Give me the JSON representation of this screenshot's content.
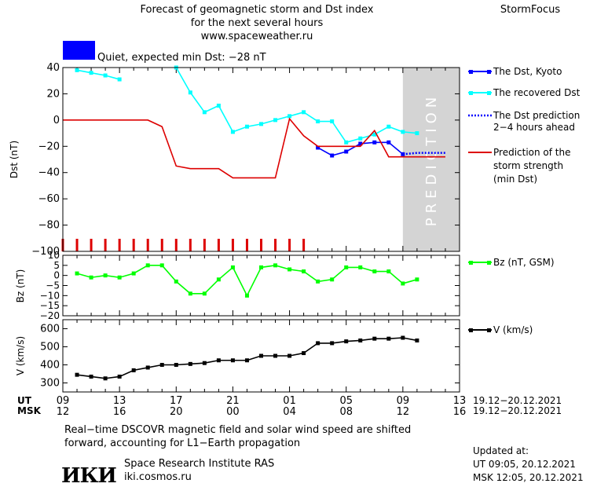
{
  "header": {
    "title_line1": "Forecast of geomagnetic storm and Dst index",
    "title_line2": "for the next several hours",
    "site": "www.spaceweather.ru",
    "brand": "StormFocus"
  },
  "status": {
    "text": "Quiet, expected min Dst: −28 nT",
    "color": "#0000ff"
  },
  "prediction_zone_label": "PREDICTION",
  "legend": {
    "dst_kyoto": "The Dst, Kyoto",
    "dst_recovered": "The recovered Dst",
    "dst_pred_line1": "The Dst prediction",
    "dst_pred_line2": "2−4 hours ahead",
    "storm_line1": "Prediction of the",
    "storm_line2": "storm strength",
    "storm_line3": "(min Dst)",
    "bz": "Bz (nT, GSM)",
    "v": "V (km/s)"
  },
  "time_axis": {
    "ut_label": "UT",
    "msk_label": "MSK",
    "ut_ticks": [
      "09",
      "13",
      "17",
      "21",
      "01",
      "05",
      "09",
      "13"
    ],
    "msk_ticks": [
      "12",
      "16",
      "20",
      "00",
      "04",
      "08",
      "12",
      "16"
    ],
    "ut_range": "19.12−20.12.2021",
    "msk_range": "19.12−20.12.2021"
  },
  "footer": {
    "note_line1": "Real−time DSCOVR magnetic field and solar wind speed are shifted",
    "note_line2": "forward, accounting for L1−Earth propagation",
    "logo_text": "ИКИ",
    "institute": "Space Research Institute RAS",
    "url": "iki.cosmos.ru",
    "updated_label": "Updated at:",
    "updated_ut": "UT   09:05, 20.12.2021",
    "updated_msk": "MSK 12:05, 20.12.2021"
  },
  "chart_data": [
    {
      "type": "line",
      "panel": "dst",
      "ylabel": "Dst (nT)",
      "ylim": [
        -100,
        40
      ],
      "yticks": [
        40,
        20,
        0,
        -20,
        -40,
        -60,
        -80,
        -100
      ],
      "xlim": [
        9,
        37
      ],
      "x_unit": "UT hour since 00 UT 19.12.2021",
      "prediction_zone": [
        33,
        37
      ],
      "series": [
        {
          "name": "The recovered Dst",
          "color": "#00ffff",
          "marker": "square",
          "x": [
            10,
            11,
            12,
            13
          ],
          "y": [
            38,
            36,
            34,
            31
          ]
        },
        {
          "name": "The recovered Dst",
          "color": "#00ffff",
          "marker": "square",
          "x": [
            17,
            18,
            19,
            20,
            21,
            22,
            23,
            24,
            25,
            26,
            27,
            28,
            29,
            30,
            31,
            32,
            33,
            34
          ],
          "y": [
            40,
            21,
            6,
            11,
            -9,
            -5,
            -3,
            0,
            3,
            6,
            -1,
            -1,
            -17,
            -14,
            -11,
            -5,
            -9,
            -10
          ]
        },
        {
          "name": "The Dst, Kyoto",
          "color": "#0000ff",
          "marker": "square",
          "x": [
            27,
            28,
            29,
            30,
            31,
            32,
            33
          ],
          "y": [
            -21,
            -27,
            -24,
            -18,
            -17,
            -17,
            -26
          ]
        },
        {
          "name": "The Dst prediction 2−4 hours ahead",
          "color": "#0000ff",
          "style": "dotted",
          "x": [
            33,
            34,
            35,
            36
          ],
          "y": [
            -26,
            -25,
            -25,
            -25
          ]
        },
        {
          "name": "Prediction of the storm strength (min Dst)",
          "color": "#dd0000",
          "style": "step",
          "x": [
            9,
            15,
            16,
            17,
            18,
            19,
            20,
            21,
            22,
            23,
            24,
            25,
            26,
            27,
            28,
            29,
            30,
            31,
            32,
            33,
            34,
            36
          ],
          "y": [
            0,
            0,
            -5,
            -35,
            -37,
            -37,
            -37,
            -44,
            -44,
            -44,
            -44,
            1,
            -12,
            -20,
            -20,
            -20,
            -20,
            -8,
            -28,
            -28,
            -28,
            -28
          ]
        }
      ],
      "event_markers_x": [
        9,
        10,
        11,
        12,
        13,
        14,
        15,
        16,
        17,
        18,
        19,
        20,
        21,
        22,
        23,
        24,
        25,
        26
      ]
    },
    {
      "type": "line",
      "panel": "bz",
      "ylabel": "Bz (nT)",
      "ylim": [
        -20,
        10
      ],
      "yticks": [
        10,
        5,
        0,
        -5,
        -10,
        -15,
        -20
      ],
      "xlim": [
        9,
        37
      ],
      "series": [
        {
          "name": "Bz (nT, GSM)",
          "color": "#00ff00",
          "marker": "square",
          "x": [
            10,
            11,
            12,
            13,
            14,
            15,
            16,
            17,
            18,
            19,
            20,
            21,
            22,
            23,
            24,
            25,
            26,
            27,
            28,
            29,
            30,
            31,
            32,
            33,
            34
          ],
          "y": [
            1,
            -1,
            0,
            -1,
            1,
            5,
            5,
            -3,
            -9,
            -9,
            -2,
            4,
            -10,
            4,
            5,
            3,
            2,
            -3,
            -2,
            4,
            4,
            2,
            2,
            -4,
            -2
          ]
        }
      ]
    },
    {
      "type": "line",
      "panel": "v",
      "ylabel": "V (km/s)",
      "ylim": [
        250,
        650
      ],
      "yticks": [
        600,
        500,
        400,
        300
      ],
      "xlim": [
        9,
        37
      ],
      "series": [
        {
          "name": "V (km/s)",
          "color": "#000000",
          "marker": "square",
          "x": [
            10,
            11,
            12,
            13,
            14,
            15,
            16,
            17,
            18,
            19,
            20,
            21,
            22,
            23,
            24,
            25,
            26,
            27,
            28,
            29,
            30,
            31,
            32,
            33,
            34
          ],
          "y": [
            345,
            335,
            325,
            335,
            370,
            385,
            400,
            400,
            405,
            410,
            425,
            425,
            425,
            450,
            450,
            450,
            465,
            520,
            520,
            530,
            535,
            545,
            545,
            550,
            535
          ]
        }
      ]
    }
  ]
}
